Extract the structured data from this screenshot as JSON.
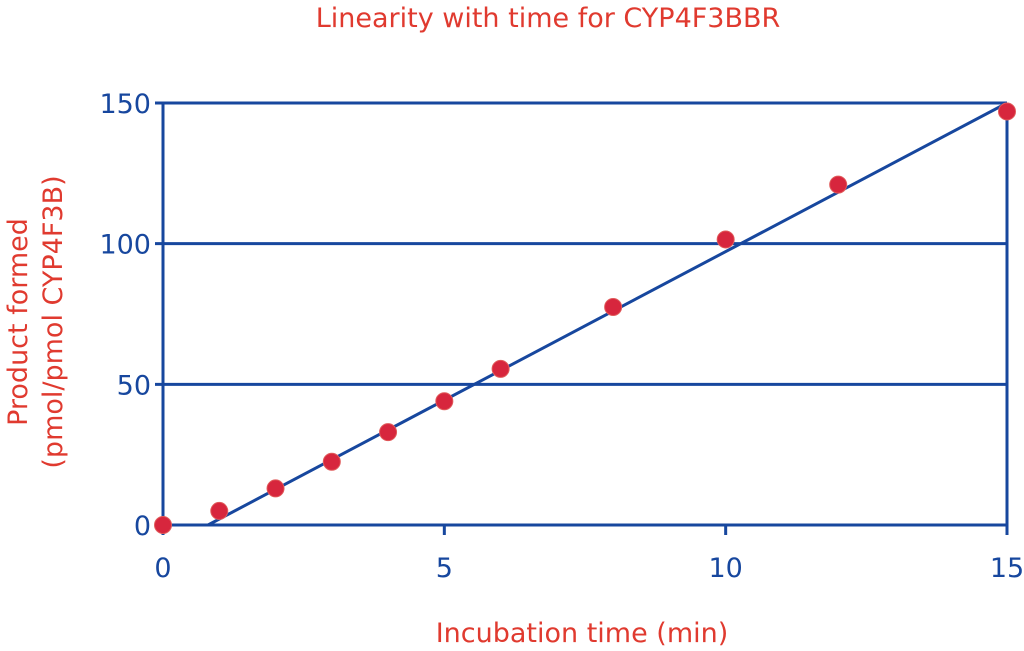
{
  "chart_data": {
    "type": "scatter",
    "title": "Linearity with time for CYP4F3BBR",
    "xlabel": "Incubation time (min)",
    "ylabel_line1": "Product formed",
    "ylabel_line2": "(pmol/pmol CYP4F3B)",
    "xlim": [
      0,
      15
    ],
    "ylim": [
      0,
      150
    ],
    "xticks": [
      0,
      5,
      10,
      15
    ],
    "yticks": [
      0,
      50,
      100,
      150
    ],
    "grid": true,
    "series": [
      {
        "x": [
          0,
          1,
          2,
          3,
          4,
          5,
          6,
          8,
          10,
          12,
          15
        ],
        "y": [
          0,
          5,
          13,
          22.5,
          33,
          44,
          55.5,
          77.5,
          101.5,
          121,
          147
        ],
        "color": "#d7263d"
      }
    ],
    "trendline": {
      "x": [
        0.8,
        15
      ],
      "y": [
        0,
        150
      ],
      "color": "#17479e"
    }
  }
}
